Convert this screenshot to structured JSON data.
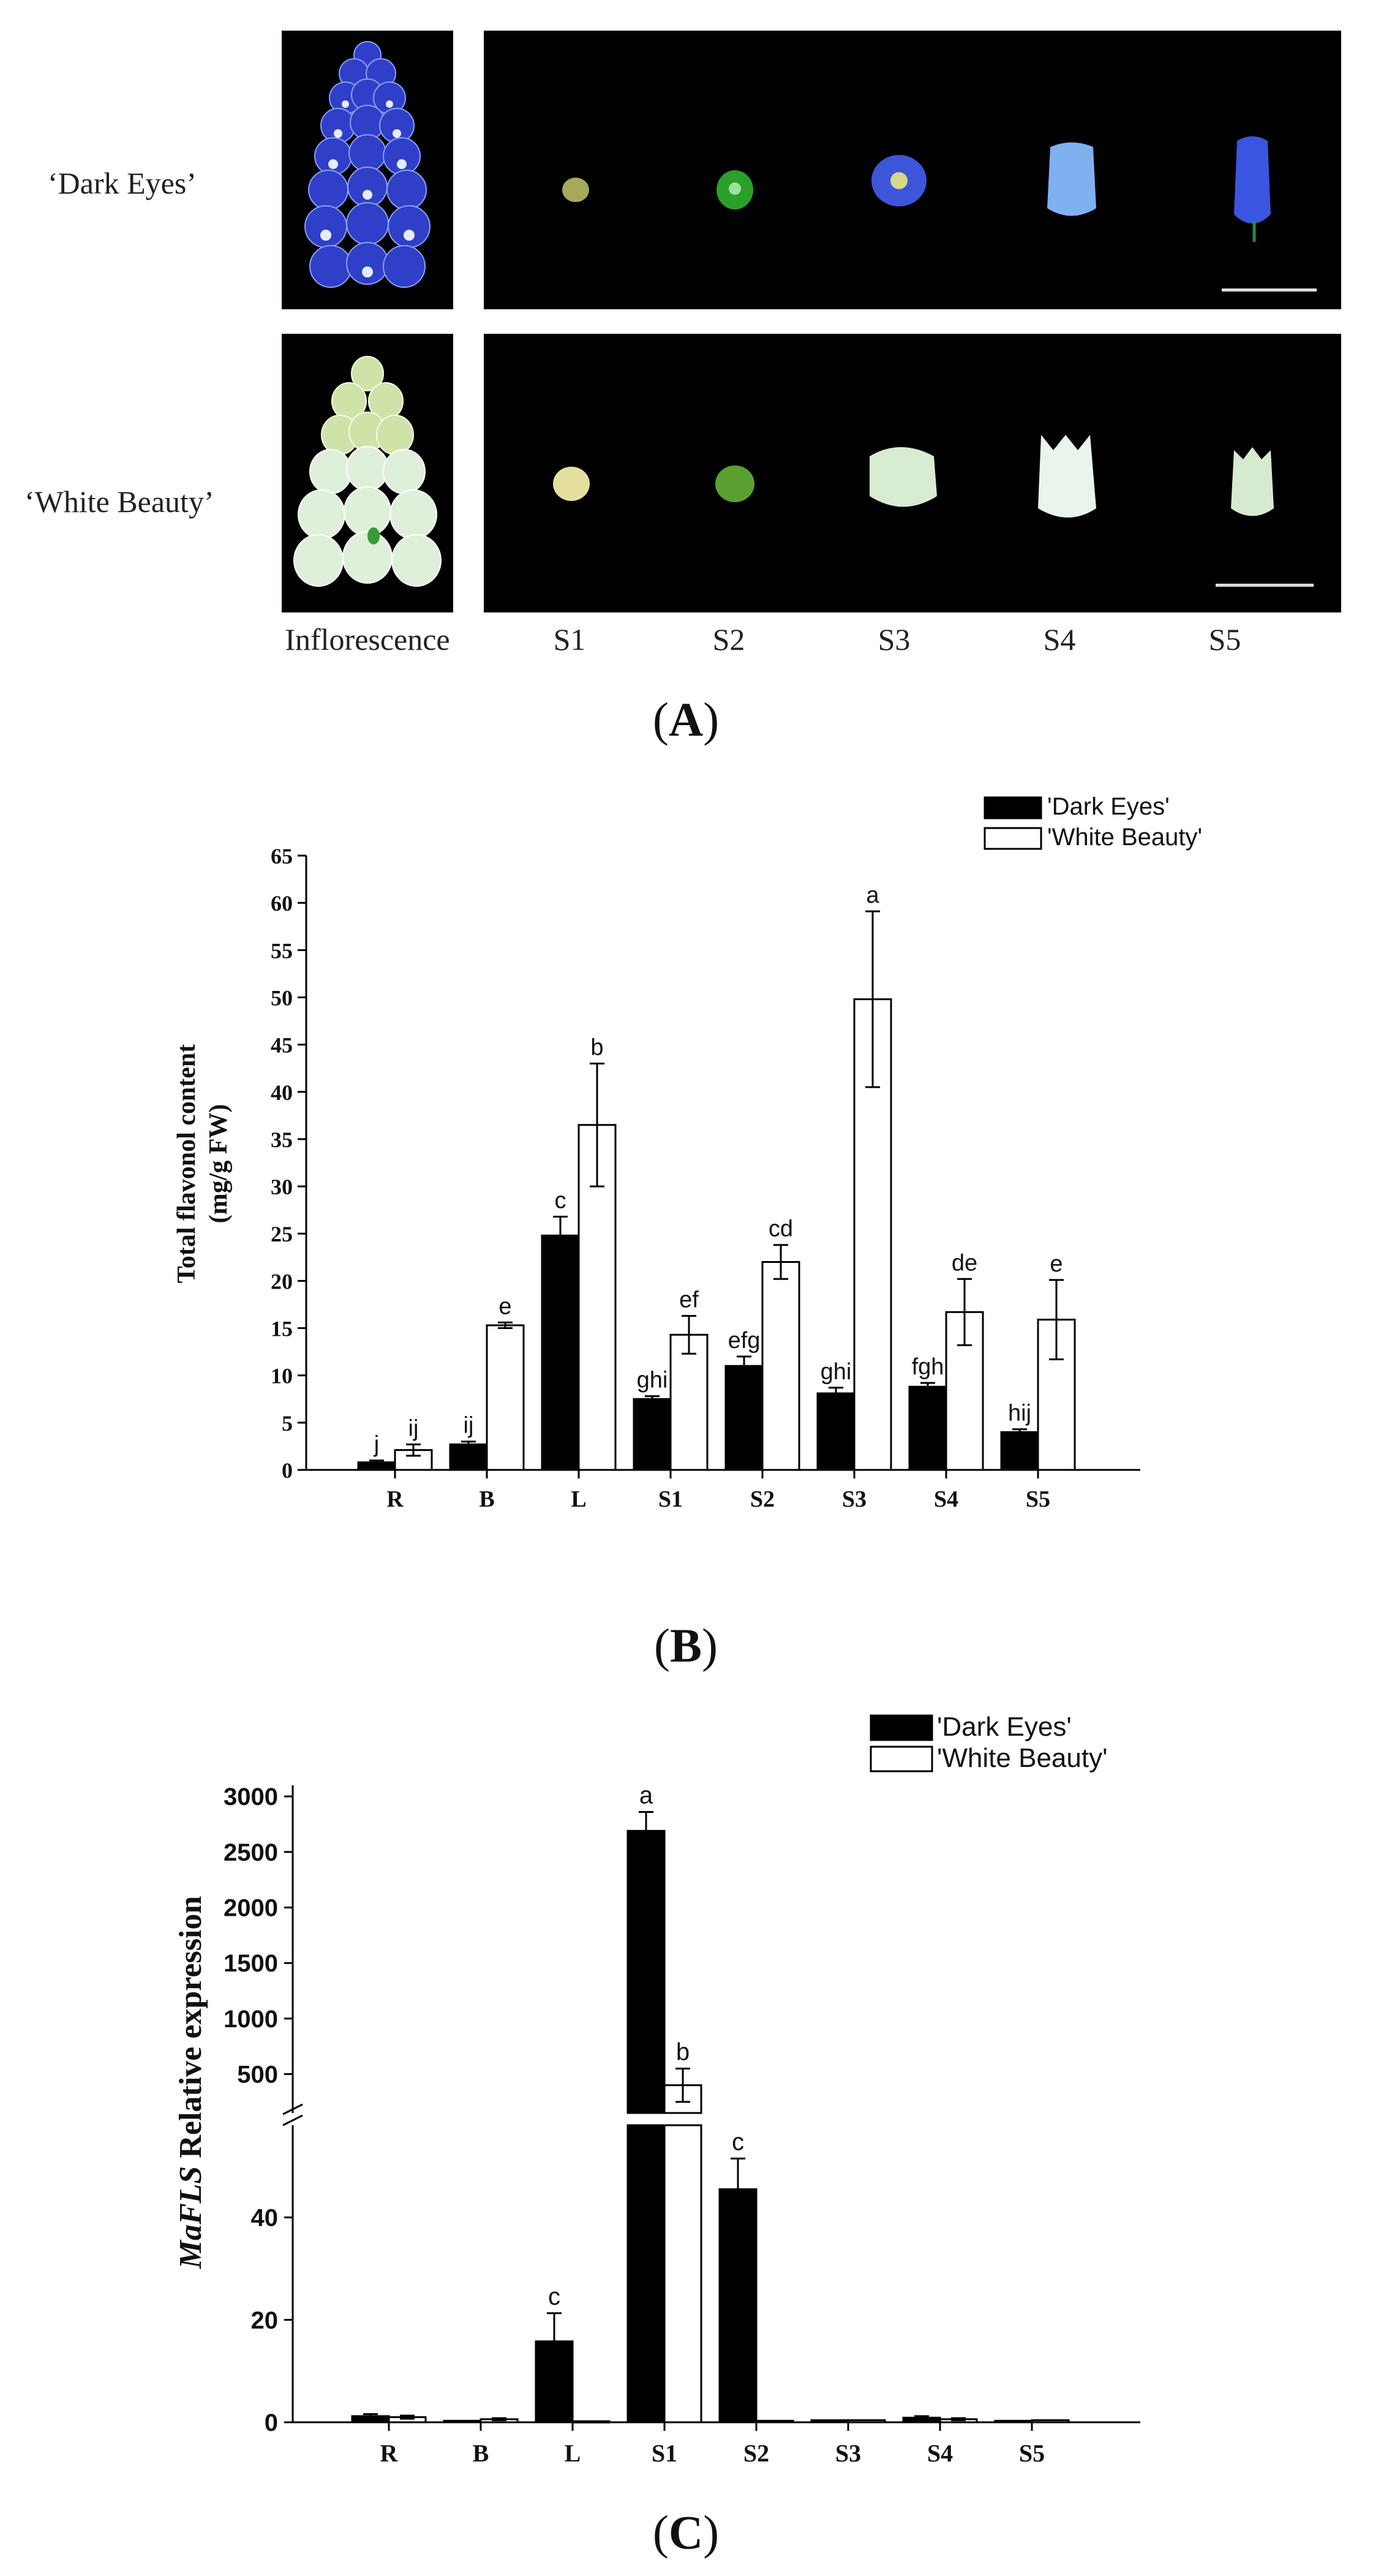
{
  "panel_a": {
    "label": "A",
    "row_labels": [
      "‘Dark Eyes’",
      "‘White Beauty’"
    ],
    "column_labels": [
      "Inflorescence",
      "S1",
      "S2",
      "S3",
      "S4",
      "S5"
    ],
    "colors": {
      "dark_eyes_flower": "#3a4fd6",
      "white_beauty_flower": "#d8ecd0",
      "background": "#000000"
    }
  },
  "chart_data": [
    {
      "id": "B",
      "type": "bar",
      "panel_label": "B",
      "ylabel_line1": "Total flavonol content",
      "ylabel_line2": "(mg/g FW)",
      "categories": [
        "R",
        "B",
        "L",
        "S1",
        "S2",
        "S3",
        "S4",
        "S5"
      ],
      "ylim": [
        0,
        65
      ],
      "yticks": [
        "0",
        "5",
        "10",
        "15",
        "20",
        "25",
        "30",
        "35",
        "40",
        "45",
        "50",
        "55",
        "60",
        "65"
      ],
      "legend": [
        "'Dark Eyes'",
        "'White Beauty'"
      ],
      "series": [
        {
          "name": "'Dark Eyes'",
          "fill": "#000000",
          "values": [
            0.8,
            2.7,
            24.8,
            7.5,
            11.0,
            8.1,
            8.8,
            4.0
          ],
          "errors": [
            0.2,
            0.3,
            2.0,
            0.3,
            1.0,
            0.6,
            0.4,
            0.3
          ],
          "letters": [
            "j",
            "ij",
            "c",
            "ghi",
            "efg",
            "ghi",
            "fgh",
            "hij"
          ]
        },
        {
          "name": "'White Beauty'",
          "fill": "#ffffff",
          "values": [
            2.1,
            15.3,
            36.5,
            14.3,
            22.0,
            49.8,
            16.7,
            15.9
          ],
          "errors": [
            0.6,
            0.3,
            6.5,
            2.0,
            1.8,
            9.3,
            3.5,
            4.2
          ],
          "letters": [
            "ij",
            "e",
            "b",
            "ef",
            "cd",
            "a",
            "de",
            "e"
          ]
        }
      ]
    },
    {
      "id": "C",
      "type": "bar",
      "panel_label": "C",
      "ylabel_gene": "MaFLS",
      "ylabel_rest": " Relative expression",
      "categories": [
        "R",
        "B",
        "L",
        "S1",
        "S2",
        "S3",
        "S4",
        "S5"
      ],
      "axis_break": {
        "lower_range": [
          0,
          58
        ],
        "upper_range": [
          150,
          3100
        ]
      },
      "yticks_upper": [
        "500",
        "1000",
        "1500",
        "2000",
        "2500",
        "3000"
      ],
      "yticks_lower": [
        "0",
        "20",
        "40"
      ],
      "legend": [
        "'Dark Eyes'",
        "'White Beauty'"
      ],
      "series": [
        {
          "name": "'Dark Eyes'",
          "fill": "#000000",
          "values": [
            1.2,
            0.3,
            15.8,
            2690,
            45.5,
            0.4,
            0.9,
            0.3
          ],
          "errors": [
            0.4,
            0.1,
            5.5,
            170,
            6.0,
            0.1,
            0.3,
            0.1
          ],
          "letters": [
            "",
            "",
            "c",
            "a",
            "c",
            "",
            "",
            ""
          ]
        },
        {
          "name": "'White Beauty'",
          "fill": "#ffffff",
          "values": [
            1.0,
            0.6,
            0.2,
            400,
            0.3,
            0.4,
            0.6,
            0.4
          ],
          "errors": [
            0.3,
            0.2,
            0.1,
            150,
            0.1,
            0.1,
            0.2,
            0.1
          ],
          "letters": [
            "",
            "",
            "",
            "b",
            "",
            "",
            "",
            ""
          ]
        }
      ]
    }
  ]
}
